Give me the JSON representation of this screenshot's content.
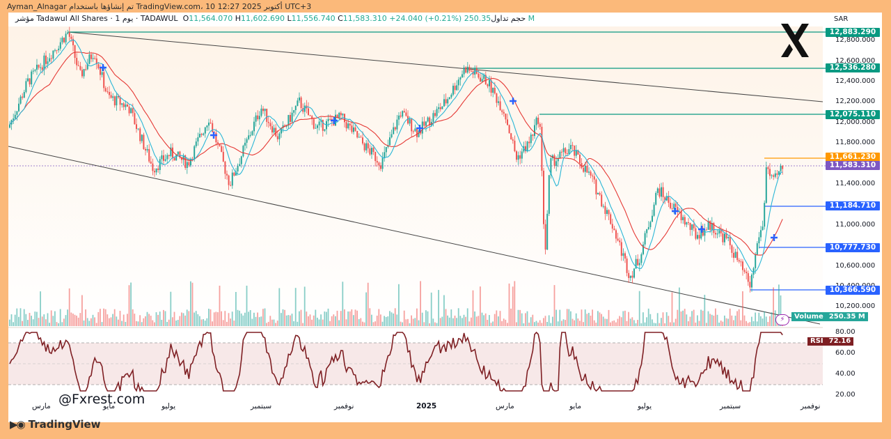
{
  "top_bar": {
    "text": "Ayman_Alnagar تم إنشاؤها باستخدام TradingView.com، 10 أكتوبر 2025 12:27 UTC+3"
  },
  "legend": {
    "symbol": "مؤشر Tadawul All Shares · 1 يوم · TADAWUL",
    "open_label": "O",
    "open": "11,564.070",
    "high_label": "H",
    "high": "11,602.690",
    "low_label": "L",
    "low": "11,556.740",
    "close_label": "C",
    "close": "11,583.310",
    "change": "+24.040 (+0.21%)",
    "volume_label": "حجم تداول",
    "volume": "250.35 M"
  },
  "price_axis": {
    "currency": "SAR",
    "ticks": [
      "12,800.000",
      "12,600.000",
      "12,400.000",
      "12,200.000",
      "12,000.000",
      "11,800.000",
      "11,400.000",
      "11,000.000",
      "10,600.000",
      "10,400.000",
      "10,200.000"
    ],
    "tags": [
      {
        "value": "12,883.290",
        "color": "#089981"
      },
      {
        "value": "12,536.280",
        "color": "#089981"
      },
      {
        "value": "12,075.110",
        "color": "#089981"
      },
      {
        "value": "11,661.230",
        "color": "#ff9800"
      },
      {
        "value": "11,583.310",
        "color": "#7e57c2"
      },
      {
        "value": "11,184.710",
        "color": "#2962ff"
      },
      {
        "value": "10,777.730",
        "color": "#2962ff"
      },
      {
        "value": "10,366.590",
        "color": "#2962ff"
      }
    ],
    "volume_badge_label": "Volume",
    "volume_badge_value": "250.35 M"
  },
  "rsi": {
    "label": "RSI",
    "value": "72.16",
    "ticks": [
      "80.00",
      "60.00",
      "40.00",
      "20.00"
    ],
    "line_color": "#7e1f23"
  },
  "time_axis": {
    "labels": [
      "مارس",
      "مايو",
      "يوليو",
      "سبتمبر",
      "نوفمبر",
      "2025",
      "مارس",
      "مايو",
      "يوليو",
      "سبتمبر",
      "نوفمبر"
    ]
  },
  "watermark": "@Fxrest.com",
  "brand": "TradingView",
  "colors": {
    "up": "#26a69a",
    "down": "#ef5350",
    "ma_fast": "#29b6d6",
    "ma_slow": "#e53935"
  }
}
